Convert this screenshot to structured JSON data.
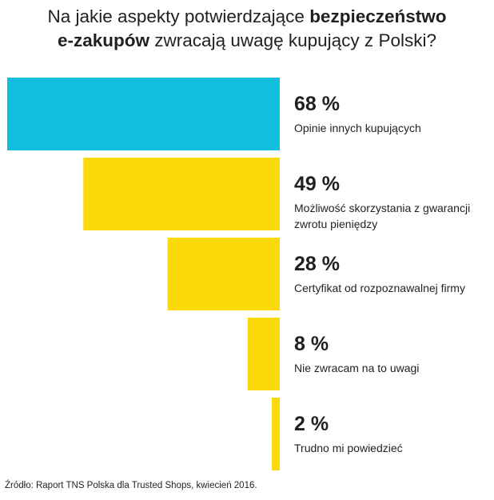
{
  "title": {
    "line1_pre": "Na jakie aspekty potwierdzające ",
    "line1_bold": "bezpieczeństwo",
    "line2_bold": "e-zakupów",
    "line2_post": " zwracają uwagę kupujący z Polski?"
  },
  "chart_data": {
    "type": "bar",
    "orientation": "horizontal",
    "title": "Na jakie aspekty potwierdzające bezpieczeństwo e-zakupów zwracają uwagę kupujący z Polski?",
    "unit": "%",
    "xlim": [
      0,
      68
    ],
    "categories": [
      [
        "Opinie innych kupujących"
      ],
      [
        "Możliwość skorzystania z gwarancji",
        "zwrotu pieniędzy"
      ],
      [
        "Certyfikat od rozpoznawalnej firmy"
      ],
      [
        "Nie zwracam na to uwagi"
      ],
      [
        "Trudno mi powiedzieć"
      ]
    ],
    "values": [
      68,
      49,
      28,
      8,
      2
    ],
    "value_labels": [
      "68 %",
      "49 %",
      "28 %",
      "8 %",
      "2 %"
    ],
    "colors": [
      "#12bedd",
      "#fcd90a",
      "#fcd90a",
      "#fcd90a",
      "#fcd90a"
    ]
  },
  "source": "Źródło: Raport TNS Polska dla Trusted Shops, kwiecień 2016."
}
